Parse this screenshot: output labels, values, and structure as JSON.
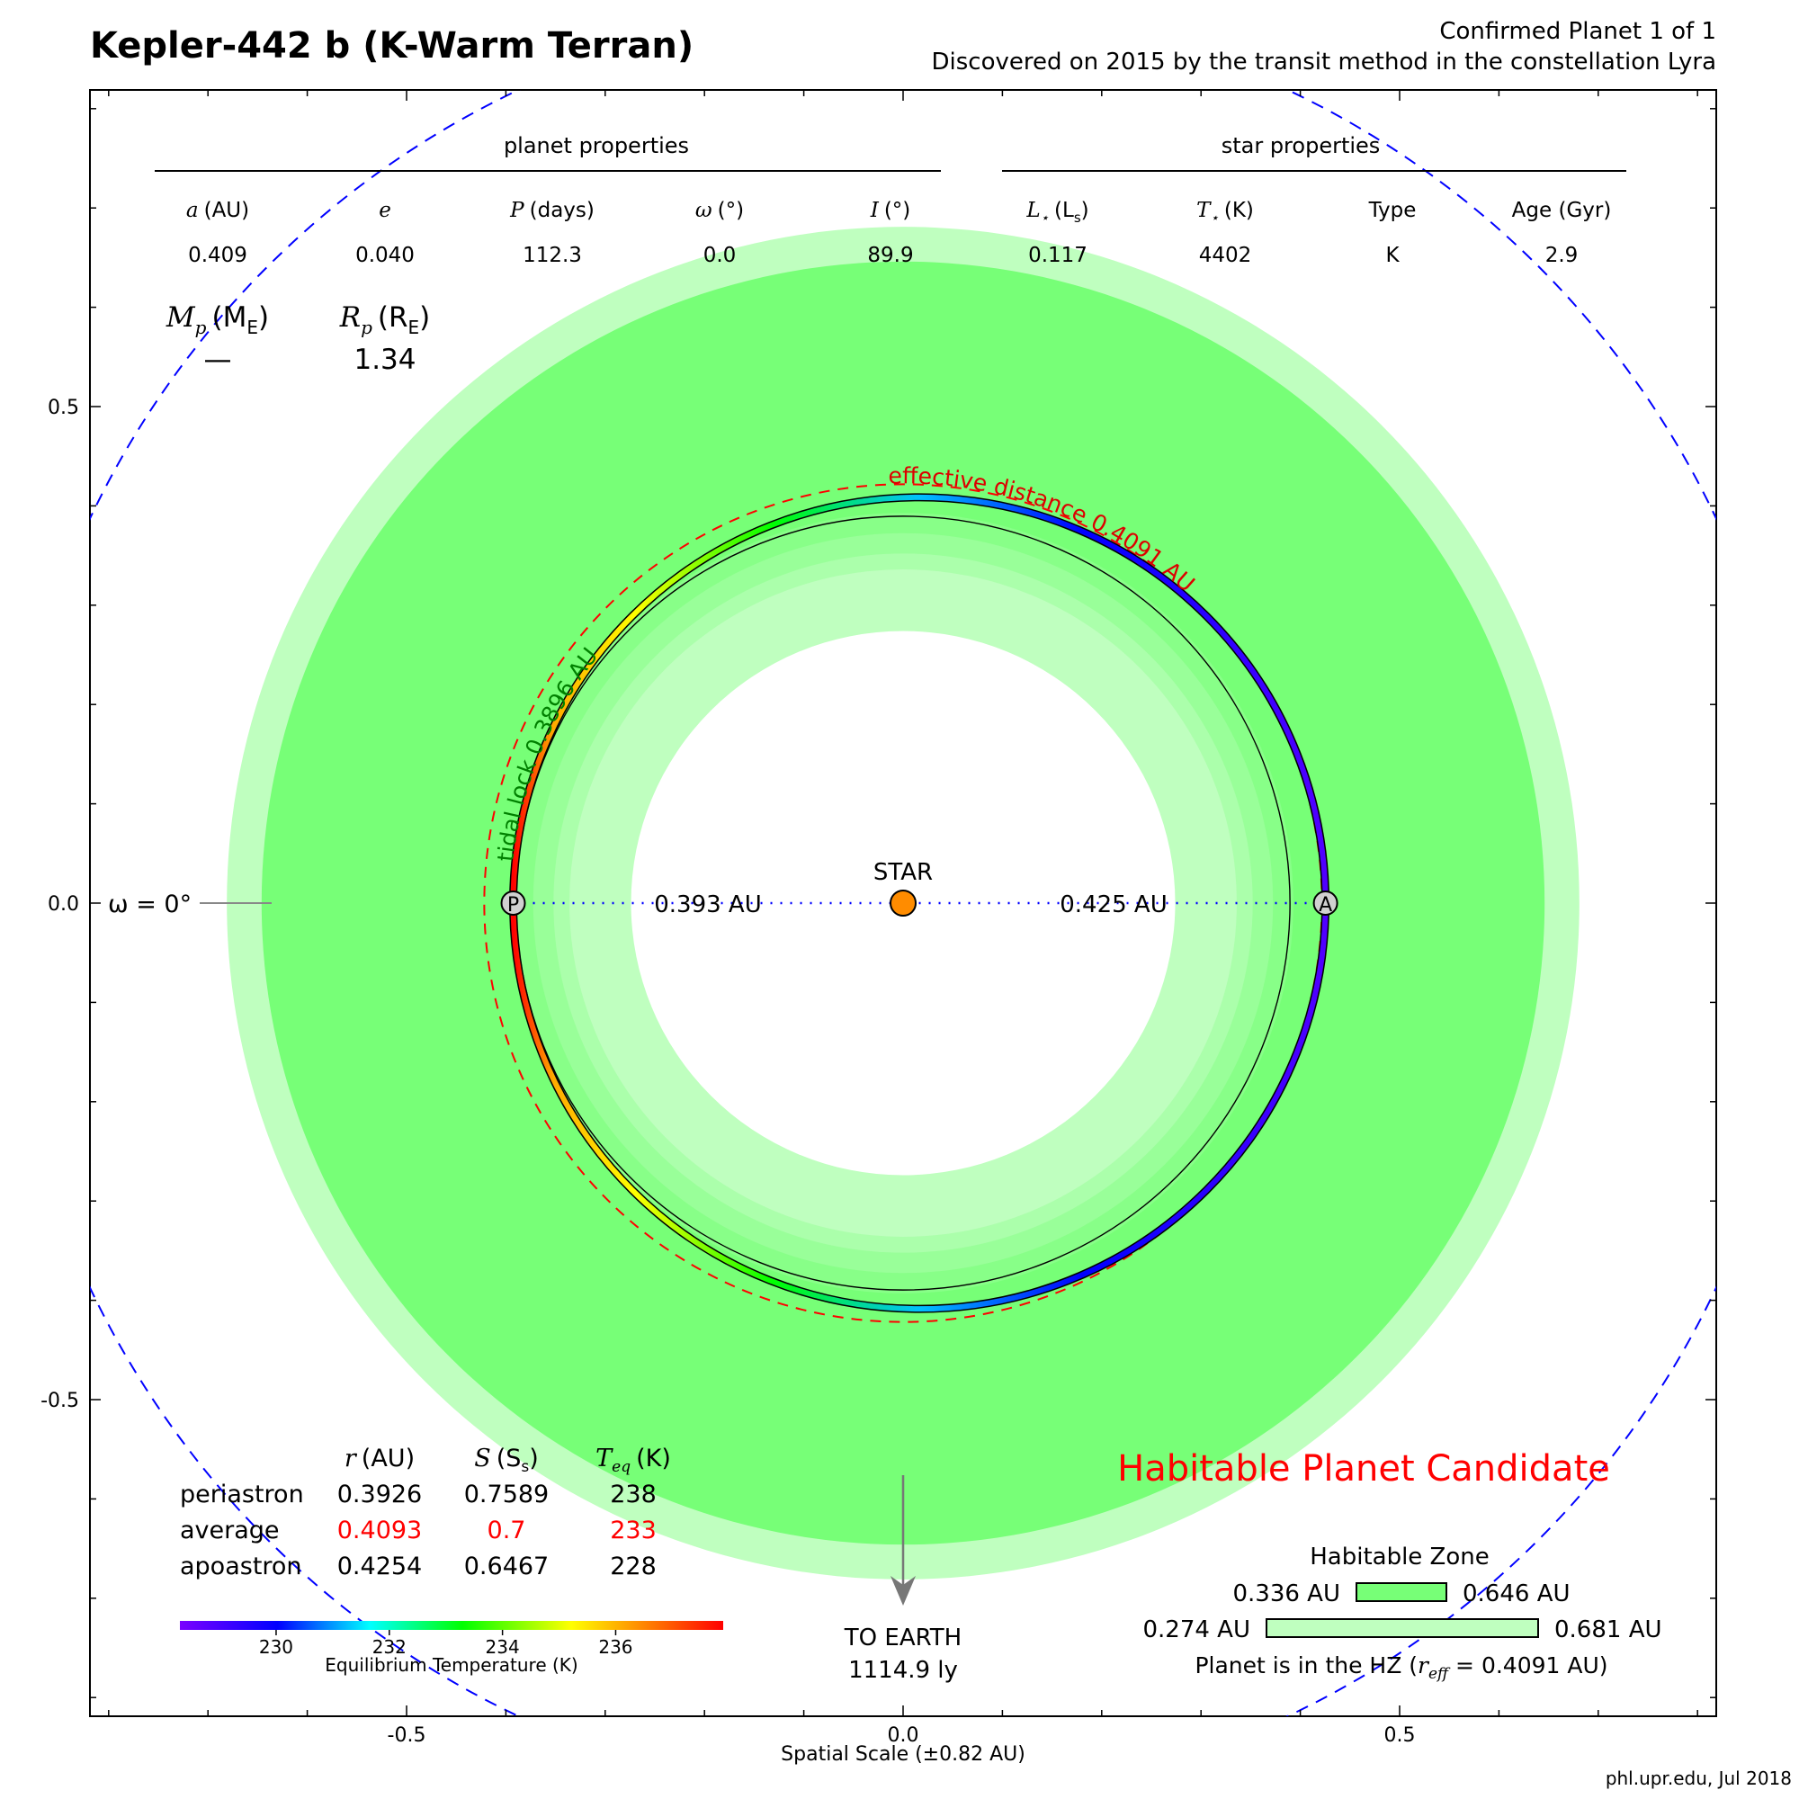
{
  "header": {
    "title": "Kepler-442 b (K-Warm Terran)",
    "subtitle_line1": "Confirmed Planet 1 of 1",
    "subtitle_line2": "Discovered on 2015 by the transit method in the constellation Lyra"
  },
  "footer": "phl.upr.edu, Jul 2018",
  "axes": {
    "xlabel": "Spatial Scale (±0.82 AU)",
    "xlim": [
      -0.82,
      0.82
    ],
    "ylim": [
      -0.82,
      0.82
    ],
    "xticks": [
      "-0.5",
      "0.0",
      "0.5"
    ],
    "yticks": [
      "0.5",
      "0.0",
      "-0.5"
    ]
  },
  "planet_properties": {
    "heading": "planet properties",
    "columns": [
      {
        "symbol": "a",
        "unit": "(AU)",
        "value": "0.409"
      },
      {
        "symbol": "e",
        "unit": "",
        "value": "0.040"
      },
      {
        "symbol": "P",
        "unit": "(days)",
        "value": "112.3"
      },
      {
        "symbol": "ω",
        "unit": "(°)",
        "value": "0.0"
      },
      {
        "symbol": "I",
        "unit": "(°)",
        "value": "89.9"
      }
    ],
    "mass": {
      "symbol": "M",
      "sub": "p",
      "unit": "(M",
      "unit_sub": "E",
      "unit_close": ")",
      "value": "—"
    },
    "radius": {
      "symbol": "R",
      "sub": "p",
      "unit": "(R",
      "unit_sub": "E",
      "unit_close": ")",
      "value": "1.34"
    }
  },
  "star_properties": {
    "heading": "star properties",
    "columns": [
      {
        "symbol": "L",
        "sub": "⋆",
        "unit": "(L",
        "unit_sub": "s",
        "unit_close": ")",
        "value": "0.117"
      },
      {
        "symbol": "T",
        "sub": "⋆",
        "unit": "(K)",
        "value": "4402"
      },
      {
        "symbol": "",
        "unit": "Type",
        "value": "K"
      },
      {
        "symbol": "",
        "unit": "Age (Gyr)",
        "value": "2.9"
      }
    ]
  },
  "orbit": {
    "omega_label": "ω = 0°",
    "star_label": "STAR",
    "periastron_marker": "P",
    "apoastron_marker": "A",
    "periastron_distance_label": "0.393 AU",
    "apoastron_distance_label": "0.425 AU",
    "effective_distance_label": "effective distance 0.4091 AU",
    "tidal_lock_label": "tidal lock 0.3896 AU",
    "semi_major_axis": 0.409,
    "eccentricity": 0.04,
    "effective_distance": 0.4091,
    "tidal_lock_distance": 0.3896,
    "hz_inner_conservative": 0.336,
    "hz_outer_conservative": 0.646,
    "hz_inner_optimistic": 0.274,
    "hz_outer_optimistic": 0.681
  },
  "earth": {
    "label_line1": "TO EARTH",
    "label_line2": "1114.9 ly"
  },
  "orbit_table": {
    "headers": [
      {
        "symbol": "r",
        "unit": "(AU)"
      },
      {
        "symbol": "S",
        "unit": "(S",
        "unit_sub": "s",
        "unit_close": ")"
      },
      {
        "symbol": "T",
        "sub": "eq",
        "unit": "(K)"
      }
    ],
    "rows": [
      {
        "label": "periastron",
        "r": "0.3926",
        "s": "0.7589",
        "t": "238",
        "highlight": false
      },
      {
        "label": "average",
        "r": "0.4093",
        "s": "0.7",
        "t": "233",
        "highlight": true
      },
      {
        "label": "apoastron",
        "r": "0.4254",
        "s": "0.6467",
        "t": "228",
        "highlight": false
      }
    ]
  },
  "colorbar": {
    "label": "Equilibrium Temperature (K)",
    "ticks": [
      "230",
      "232",
      "234",
      "236"
    ],
    "min": 228.3,
    "max": 237.9
  },
  "status": {
    "label": "Habitable Planet Candidate",
    "color": "#ff0000"
  },
  "habitable_zone": {
    "title": "Habitable Zone",
    "conservative_inner": "0.336 AU",
    "conservative_outer": "0.646 AU",
    "optimistic_inner": "0.274 AU",
    "optimistic_outer": "0.681 AU",
    "note_prefix": "Planet is in the HZ (",
    "note_symbol": "r",
    "note_sub": "eff",
    "note_suffix": " = 0.4091 AU)"
  },
  "colors": {
    "hz_conservative": "#77ff77",
    "hz_optimistic": "#bfffbf",
    "star": "#ff8c00",
    "orbit_guide": "#0000ff",
    "effective": "#ff0000",
    "tidal": "#008000",
    "highlight": "#ff0000"
  }
}
